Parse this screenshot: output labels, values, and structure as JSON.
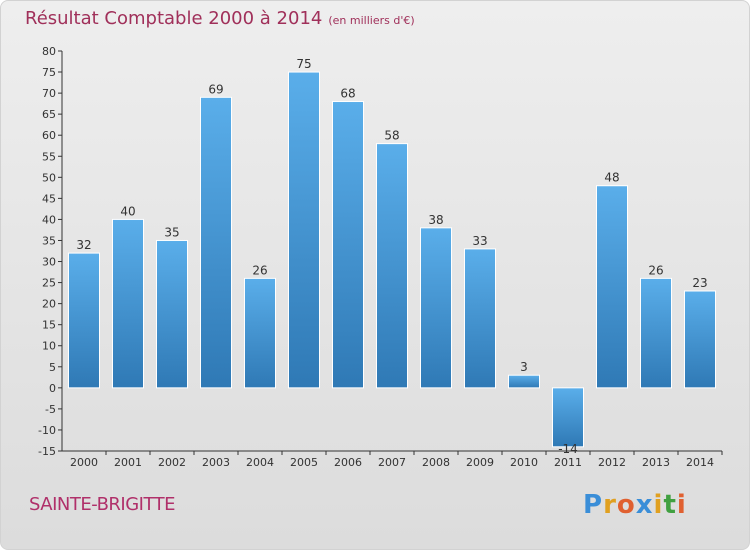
{
  "header": {
    "title": "Résultat Comptable 2000 à 2014",
    "subtitle": "(en milliers d'€)"
  },
  "footer": {
    "location": "SAINTE-BRIGITTE",
    "logo_letters": [
      "P",
      "r",
      "o",
      "x",
      "i",
      "t",
      "i"
    ],
    "logo_colors": [
      "#3a8ed8",
      "#e0a020",
      "#e06030",
      "#3a8ed8",
      "#e0a020",
      "#40a040",
      "#e06030"
    ]
  },
  "colors": {
    "bar_top": "#5aaeea",
    "bar_bottom": "#2f79b5",
    "accent": "#a0305a"
  },
  "chart_data": {
    "type": "bar",
    "categories": [
      "2000",
      "2001",
      "2002",
      "2003",
      "2004",
      "2005",
      "2006",
      "2007",
      "2008",
      "2009",
      "2010",
      "2011",
      "2012",
      "2013",
      "2014"
    ],
    "values": [
      32,
      40,
      35,
      69,
      26,
      75,
      68,
      58,
      38,
      33,
      3,
      -14,
      48,
      26,
      23
    ],
    "data_labels": [
      "32",
      "40",
      "35",
      "69",
      "26",
      "75",
      "68",
      "58",
      "38",
      "33",
      "3",
      "-14",
      "48",
      "26",
      "23"
    ],
    "y_ticks": [
      80,
      75,
      70,
      65,
      60,
      55,
      50,
      45,
      40,
      35,
      30,
      25,
      20,
      15,
      10,
      5,
      0,
      -5,
      -10,
      -15
    ],
    "ylim": [
      -15,
      80
    ],
    "grid": false,
    "title": "Résultat Comptable 2000 à 2014",
    "xlabel": "",
    "ylabel": ""
  }
}
